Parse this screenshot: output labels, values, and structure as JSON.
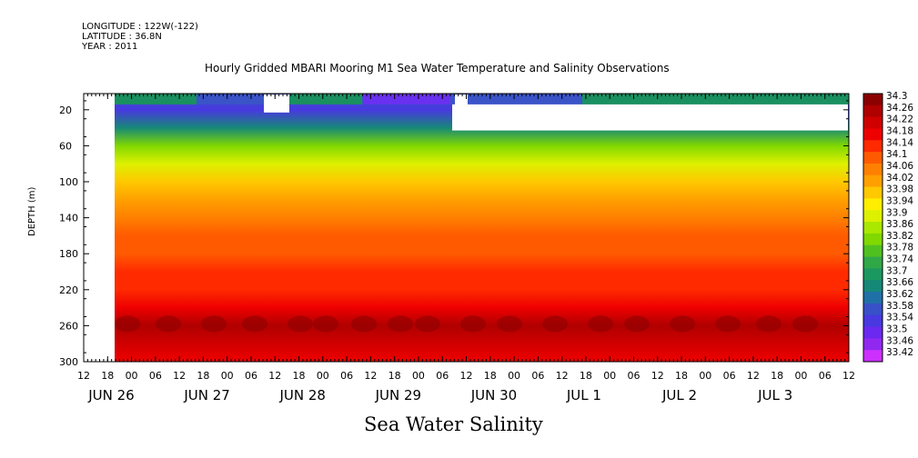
{
  "header": {
    "longitude": "LONGITUDE : 122W(-122)",
    "latitude": "LATITUDE : 36.8N",
    "year": "YEAR : 2011"
  },
  "chart_data": {
    "type": "heatmap",
    "title": "Hourly Gridded MBARI Mooring M1 Sea Water Temperature and Salinity Observations",
    "variable": "Sea Water Salinity",
    "ylabel": "DEPTH (m)",
    "ylim": [
      300,
      2
    ],
    "y_ticks": [
      20,
      60,
      100,
      140,
      180,
      220,
      260,
      300
    ],
    "x_hour_ticks": [
      "12",
      "18",
      "00",
      "06",
      "12",
      "18",
      "00",
      "06",
      "12",
      "18",
      "00",
      "06",
      "12",
      "18",
      "00",
      "06",
      "12",
      "18",
      "00",
      "06",
      "12",
      "18",
      "00",
      "06",
      "12",
      "18",
      "00",
      "06",
      "12",
      "18",
      "00",
      "06",
      "12"
    ],
    "x_day_labels": [
      "JUN 26",
      "JUN 27",
      "JUN 28",
      "JUN 29",
      "JUN 30",
      "JUL  1",
      "JUL  2",
      "JUL  3"
    ],
    "colorbar": {
      "levels": [
        "34.3",
        "34.26",
        "34.22",
        "34.18",
        "34.14",
        "34.1",
        "34.06",
        "34.02",
        "33.98",
        "33.94",
        "33.9",
        "33.86",
        "33.82",
        "33.78",
        "33.74",
        "33.7",
        "33.66",
        "33.62",
        "33.58",
        "33.54",
        "33.5",
        "33.46",
        "33.42"
      ],
      "colors": [
        "#8b0000",
        "#b00000",
        "#d00000",
        "#ee0000",
        "#ff2a00",
        "#ff5a00",
        "#ff8000",
        "#ffa000",
        "#ffc800",
        "#ffee00",
        "#ddf000",
        "#aae800",
        "#80d800",
        "#50c020",
        "#30a848",
        "#1a9860",
        "#168878",
        "#2070a8",
        "#3850c8",
        "#4838e0",
        "#6a28f0",
        "#9028f0",
        "#cc30ff"
      ]
    },
    "depth_profile": [
      {
        "depth": 5,
        "salinity": 33.6
      },
      {
        "depth": 20,
        "salinity": 33.55
      },
      {
        "depth": 40,
        "salinity": 33.66
      },
      {
        "depth": 60,
        "salinity": 33.82
      },
      {
        "depth": 80,
        "salinity": 33.92
      },
      {
        "depth": 100,
        "salinity": 33.98
      },
      {
        "depth": 120,
        "salinity": 34.04
      },
      {
        "depth": 140,
        "salinity": 34.08
      },
      {
        "depth": 160,
        "salinity": 34.1
      },
      {
        "depth": 180,
        "salinity": 34.12
      },
      {
        "depth": 200,
        "salinity": 34.14
      },
      {
        "depth": 220,
        "salinity": 34.17
      },
      {
        "depth": 240,
        "salinity": 34.21
      },
      {
        "depth": 260,
        "salinity": 34.26
      },
      {
        "depth": 280,
        "salinity": 34.22
      },
      {
        "depth": 300,
        "salinity": 34.18
      }
    ]
  }
}
